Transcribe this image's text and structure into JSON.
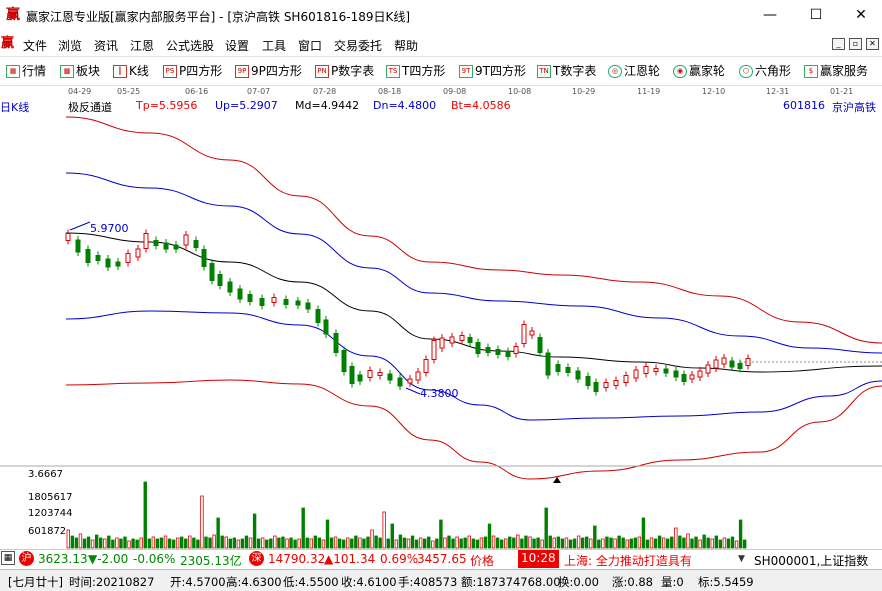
{
  "window": {
    "logo": "赢",
    "title": "赢家江恩专业版[赢家内部服务平台] - [京沪高铁  SH601816-189日K线]",
    "minimize": "—",
    "maximize": "☐",
    "close": "✕"
  },
  "menu": {
    "logo": "赢",
    "items": [
      "文件",
      "浏览",
      "资讯",
      "江恩",
      "公式选股",
      "设置",
      "工具",
      "窗口",
      "交易委托",
      "帮助"
    ],
    "mdi": [
      "_",
      "▫",
      "✕"
    ]
  },
  "toolbar": {
    "items": [
      {
        "label": "行情",
        "icon": "grid-icon"
      },
      {
        "label": "板块",
        "icon": "block-icon"
      },
      {
        "label": "K线",
        "icon": "kline-icon"
      },
      {
        "label": "P四方形",
        "icon": "ps-icon",
        "badge": "PS"
      },
      {
        "label": "9P四方形",
        "icon": "9p-icon",
        "badge": "9P"
      },
      {
        "label": "P数字表",
        "icon": "pn-icon",
        "badge": "PN"
      },
      {
        "label": "T四方形",
        "icon": "ts-icon",
        "badge": "TS"
      },
      {
        "label": "9T四方形",
        "icon": "9t-icon",
        "badge": "9T"
      },
      {
        "label": "T数字表",
        "icon": "tn-icon",
        "badge": "TN"
      },
      {
        "label": "江恩轮",
        "icon": "gann-wheel-icon"
      },
      {
        "label": "赢家轮",
        "icon": "winner-wheel-icon"
      },
      {
        "label": "六角形",
        "icon": "hexagon-icon"
      },
      {
        "label": "赢家服务",
        "icon": "service-icon"
      }
    ]
  },
  "chart_header": {
    "period": "日K线",
    "indicator": "极反通道",
    "tp": "Tp=5.5956",
    "up": "Up=5.2907",
    "md": "Md=4.9442",
    "dn": "Dn=4.4800",
    "bt": "Bt=4.0586",
    "code": "601816",
    "name": "京沪高铁"
  },
  "chart_data": {
    "type": "candlestick",
    "x_ticks": [
      "04-29",
      "05-25",
      "06-16",
      "07-07",
      "07-28",
      "08-18",
      "09-08",
      "10-08",
      "10-29",
      "11-19",
      "12-10",
      "12-31",
      "01-21"
    ],
    "annotations": [
      {
        "label": "5.9700",
        "kind": "high"
      },
      {
        "label": "4.3800",
        "kind": "low"
      }
    ],
    "volume_axis": [
      "3.6667",
      "1805617",
      "1203744",
      "601872"
    ],
    "colors": {
      "up": "#e00000",
      "down": "#008000",
      "tp_bt": "#cc0000",
      "up_dn": "#0000cc",
      "md": "#000000"
    }
  },
  "status": {
    "sh_index": "3623.13",
    "sh_change": "▼-2.00",
    "sh_pct": "-0.06%",
    "sh_amount": "2305.13亿",
    "sz_index": "14790.32",
    "sz_change": "▲101.34",
    "sz_pct": "0.69%",
    "sz_amount": "3457.65",
    "ticker_cut": "价格",
    "time": "10:28",
    "news": "上海:  全力推动打造具有",
    "index_name": "SH000001,上证指数"
  },
  "info": {
    "lunar": "[七月廿十]",
    "time": "时间:20210827",
    "open": "开:4.5700",
    "high": "高:4.6300",
    "low": "低:4.5500",
    "close": "收:4.6100",
    "vol": "手:408573",
    "amount": "额:187374768.00",
    "turnover": "换:0.00",
    "change": "涨:0.88",
    "count": "量:0",
    "mark": "标:5.5459"
  }
}
